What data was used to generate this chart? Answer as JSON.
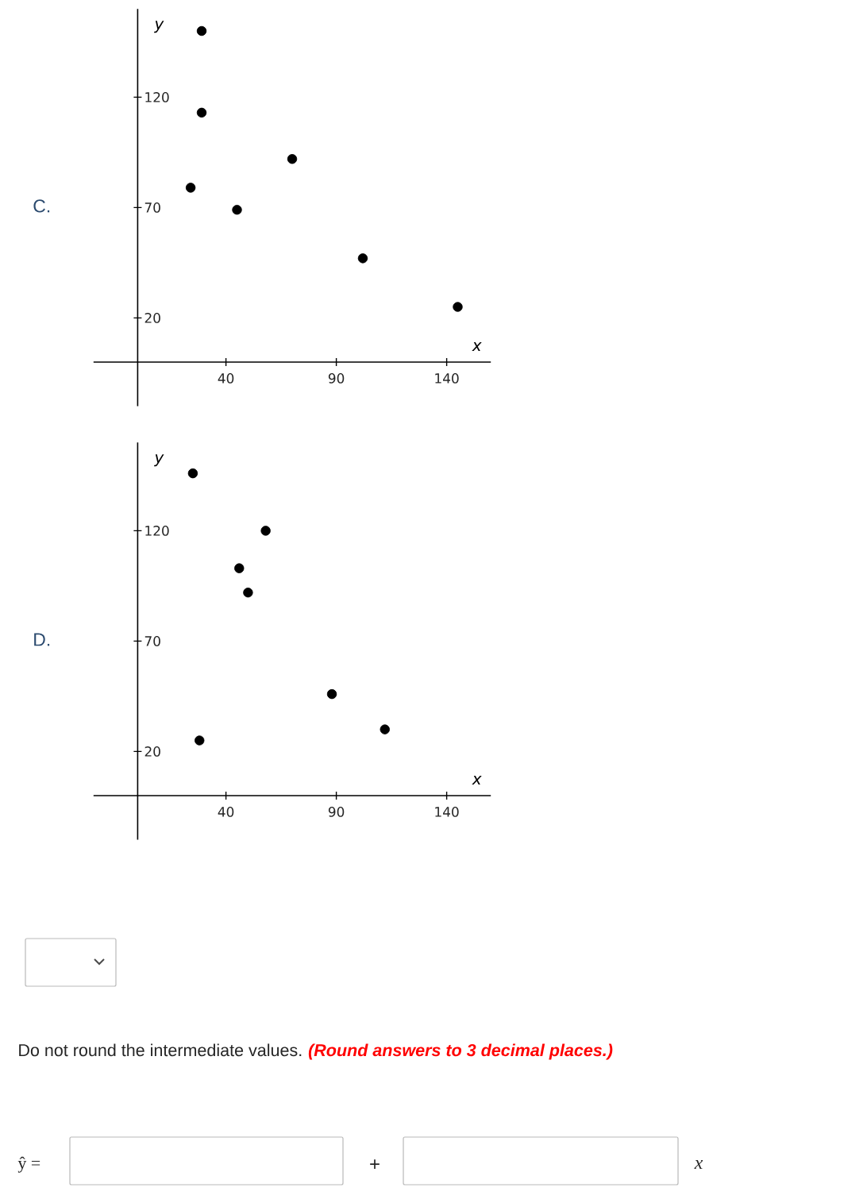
{
  "chart_data": [
    {
      "type": "scatter",
      "title": "C.",
      "xlabel": "x",
      "ylabel": "y",
      "color": "#000000",
      "marker": "circle",
      "x": [
        29,
        29,
        70,
        24,
        45,
        102,
        145
      ],
      "values": [
        150,
        113,
        92,
        79,
        69,
        47,
        25
      ],
      "xlim": [
        -20,
        160
      ],
      "ylim": [
        -20,
        160
      ],
      "xticks": [
        40,
        90,
        140
      ],
      "yticks": [
        20,
        70,
        120
      ]
    },
    {
      "type": "scatter",
      "title": "D.",
      "xlabel": "x",
      "ylabel": "y",
      "color": "#000000",
      "marker": "circle",
      "x": [
        25,
        58,
        46,
        50,
        88,
        112,
        28
      ],
      "values": [
        146,
        120,
        103,
        92,
        46,
        30,
        25
      ],
      "xlim": [
        -20,
        160
      ],
      "ylim": [
        -20,
        160
      ],
      "xticks": [
        40,
        90,
        140
      ],
      "yticks": [
        20,
        70,
        120
      ]
    },
    {
      "type": "other",
      "annotations": [
        "Do not round the intermediate values.",
        "(Round answers to 3 decimal places.)",
        "ŷ =",
        "+",
        "x"
      ]
    }
  ]
}
